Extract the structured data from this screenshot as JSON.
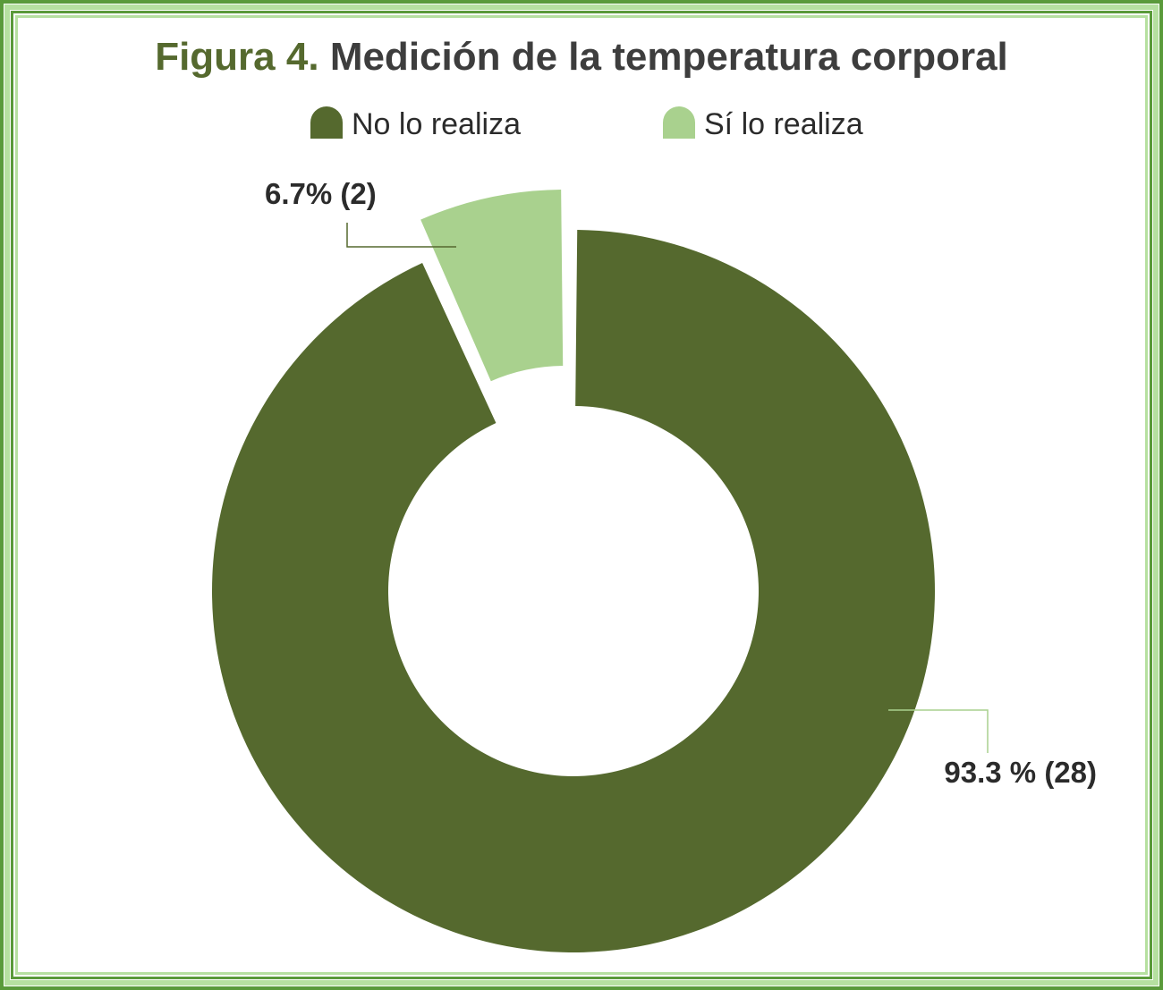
{
  "colors": {
    "no_lo_realiza": "#55692e",
    "si_lo_realiza": "#a9d18e",
    "border_dark": "#5a9a3a",
    "border_light": "#b6e0a0",
    "title_prefix": "#55692e",
    "title_main": "#3d3d3d",
    "leader_dark": "#55692e",
    "leader_light": "#a9d18e"
  },
  "title": {
    "prefix": "Figura 4.",
    "main": "Medición de la temperatura corporal"
  },
  "chart_data": {
    "type": "pie",
    "variant": "donut",
    "title": "Medición de la temperatura corporal",
    "legend_placement": "top",
    "series": [
      {
        "name": "No lo realiza",
        "percent": 93.3,
        "count": 28,
        "label": "93.3 % (28)",
        "color": "#55692e",
        "exploded": false
      },
      {
        "name": "Sí lo realiza",
        "percent": 6.7,
        "count": 2,
        "label": "6.7% (2)",
        "color": "#a9d18e",
        "exploded": true
      }
    ]
  }
}
